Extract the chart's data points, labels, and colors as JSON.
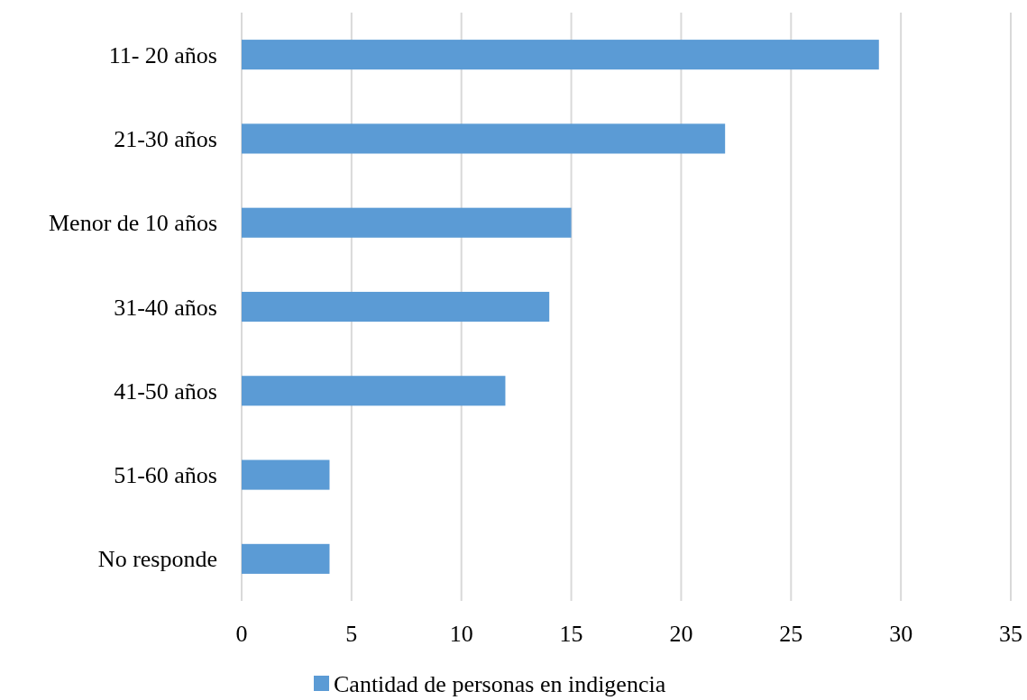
{
  "chart_data": {
    "type": "bar",
    "orientation": "horizontal",
    "categories": [
      "11- 20 años",
      "21-30 años",
      "Menor de 10 años",
      "31-40 años",
      "41-50 años",
      "51-60 años",
      "No responde"
    ],
    "series": [
      {
        "name": "Cantidad de personas en indigencia",
        "color": "#5b9bd5",
        "values": [
          29,
          22,
          15,
          14,
          12,
          4,
          4
        ]
      }
    ],
    "xlim": [
      0,
      35
    ],
    "xticks": [
      0,
      5,
      10,
      15,
      20,
      25,
      30,
      35
    ],
    "grid": "x",
    "legend": "bottom"
  }
}
